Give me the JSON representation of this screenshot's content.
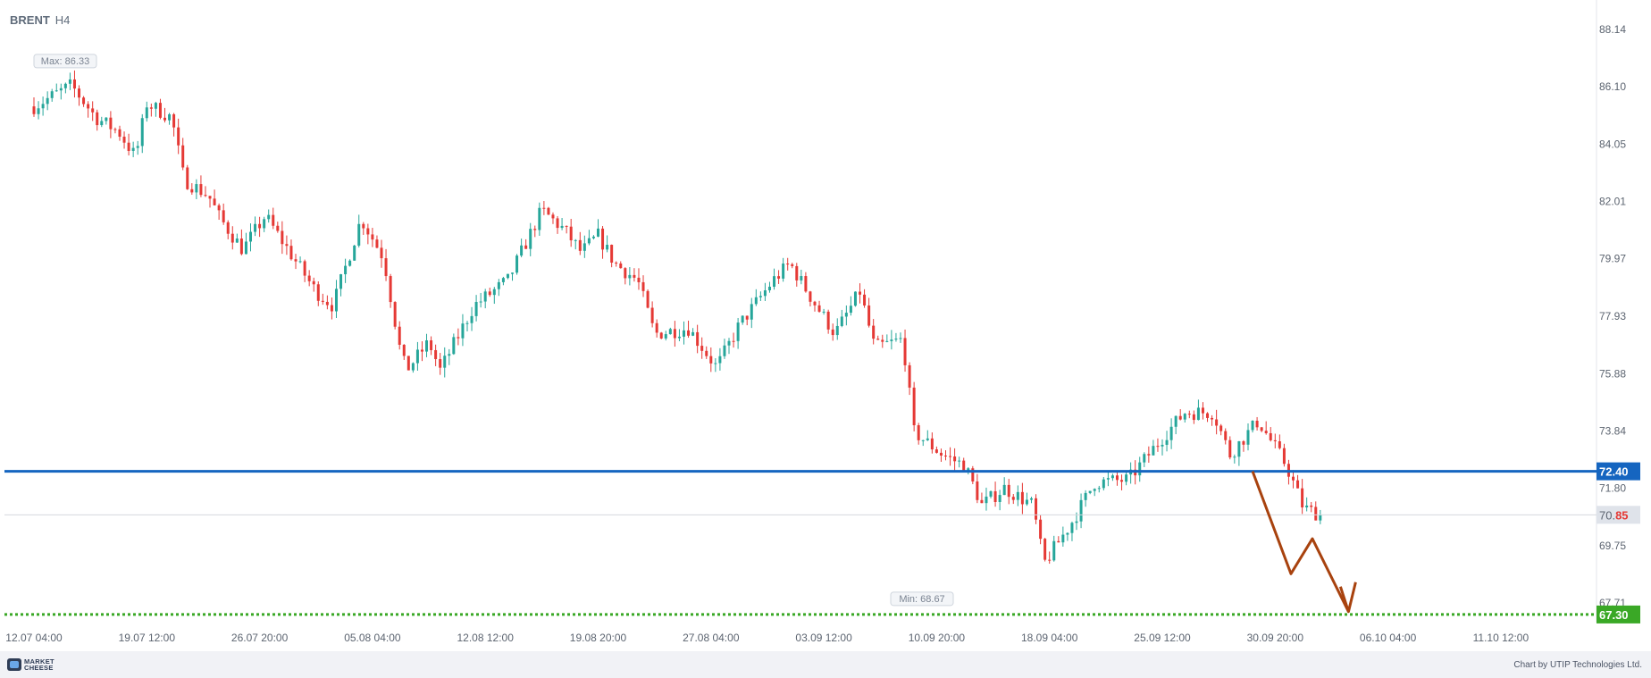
{
  "header": {
    "symbol": "BRENT",
    "timeframe": "H4"
  },
  "footer": {
    "logo_line1": "MARKET",
    "logo_line2": "CHEESE",
    "credit": "Chart by UTIP Technologies Ltd."
  },
  "colors": {
    "bullish": "#26a69a",
    "bearish": "#e53935",
    "support_line": "#1565c0",
    "target_line": "#3aa826",
    "forecast_arrow": "#a8420e",
    "axis_text": "#5c6470",
    "current_price_bg": "#dfe3ea"
  },
  "chart_data": {
    "type": "candlestick",
    "instrument": "BRENT",
    "timeframe": "H4",
    "ylim": [
      66.9,
      88.9
    ],
    "y_ticks": [
      "88.14",
      "86.10",
      "84.05",
      "82.01",
      "79.97",
      "77.93",
      "75.88",
      "73.84",
      "71.80",
      "69.75",
      "67.71"
    ],
    "x_ticks": [
      "12.07 04:00",
      "19.07 12:00",
      "26.07 20:00",
      "05.08 04:00",
      "12.08 12:00",
      "19.08 20:00",
      "27.08 04:00",
      "03.09 12:00",
      "10.09 20:00",
      "18.09 04:00",
      "25.09 12:00",
      "30.09 20:00",
      "06.10 04:00",
      "11.10 12:00"
    ],
    "max_label": "Max: 86.33",
    "min_label": "Min: 68.67",
    "max_value": 86.33,
    "min_value": 68.67,
    "current_price": {
      "value": 70.85,
      "main": "70.",
      "tail": "85"
    },
    "support_level": {
      "value": 72.4,
      "label": "72.40"
    },
    "target_level": {
      "value": 67.3,
      "label": "67.30"
    },
    "forecast_path": [
      {
        "x_tick": 10.8,
        "y": 72.4
      },
      {
        "x_tick": 11.14,
        "y": 68.75
      },
      {
        "x_tick": 11.33,
        "y": 70.0
      },
      {
        "x_tick": 11.65,
        "y": 67.4
      }
    ],
    "waypoints": [
      {
        "x_tick": 0.0,
        "y": 85.4
      },
      {
        "x_tick": 0.33,
        "y": 86.15
      },
      {
        "x_tick": 0.55,
        "y": 85.0
      },
      {
        "x_tick": 0.75,
        "y": 84.5
      },
      {
        "x_tick": 0.9,
        "y": 83.6
      },
      {
        "x_tick": 1.0,
        "y": 85.5
      },
      {
        "x_tick": 1.22,
        "y": 85.0
      },
      {
        "x_tick": 1.33,
        "y": 82.8
      },
      {
        "x_tick": 1.55,
        "y": 82.2
      },
      {
        "x_tick": 1.65,
        "y": 81.4
      },
      {
        "x_tick": 1.85,
        "y": 80.3
      },
      {
        "x_tick": 2.05,
        "y": 81.5
      },
      {
        "x_tick": 2.25,
        "y": 80.3
      },
      {
        "x_tick": 2.5,
        "y": 78.8
      },
      {
        "x_tick": 2.65,
        "y": 78.3
      },
      {
        "x_tick": 2.9,
        "y": 81.4
      },
      {
        "x_tick": 3.1,
        "y": 80.0
      },
      {
        "x_tick": 3.25,
        "y": 76.6
      },
      {
        "x_tick": 3.3,
        "y": 76.0
      },
      {
        "x_tick": 3.5,
        "y": 77.0
      },
      {
        "x_tick": 3.6,
        "y": 76.0
      },
      {
        "x_tick": 3.9,
        "y": 78.3
      },
      {
        "x_tick": 4.2,
        "y": 79.2
      },
      {
        "x_tick": 4.5,
        "y": 81.7
      },
      {
        "x_tick": 4.7,
        "y": 81.0
      },
      {
        "x_tick": 4.85,
        "y": 80.2
      },
      {
        "x_tick": 5.0,
        "y": 80.8
      },
      {
        "x_tick": 5.15,
        "y": 79.8
      },
      {
        "x_tick": 5.35,
        "y": 79.2
      },
      {
        "x_tick": 5.5,
        "y": 77.3
      },
      {
        "x_tick": 5.8,
        "y": 77.5
      },
      {
        "x_tick": 6.05,
        "y": 76.1
      },
      {
        "x_tick": 6.25,
        "y": 77.6
      },
      {
        "x_tick": 6.55,
        "y": 79.2
      },
      {
        "x_tick": 6.7,
        "y": 79.8
      },
      {
        "x_tick": 6.9,
        "y": 78.5
      },
      {
        "x_tick": 7.1,
        "y": 77.3
      },
      {
        "x_tick": 7.32,
        "y": 78.8
      },
      {
        "x_tick": 7.45,
        "y": 76.8
      },
      {
        "x_tick": 7.7,
        "y": 77.1
      },
      {
        "x_tick": 7.8,
        "y": 73.8
      },
      {
        "x_tick": 8.05,
        "y": 73.0
      },
      {
        "x_tick": 8.25,
        "y": 72.6
      },
      {
        "x_tick": 8.4,
        "y": 71.2
      },
      {
        "x_tick": 8.6,
        "y": 71.8
      },
      {
        "x_tick": 8.85,
        "y": 71.2
      },
      {
        "x_tick": 8.95,
        "y": 69.1
      },
      {
        "x_tick": 9.2,
        "y": 70.6
      },
      {
        "x_tick": 9.4,
        "y": 72.0
      },
      {
        "x_tick": 9.7,
        "y": 72.1
      },
      {
        "x_tick": 10.0,
        "y": 73.6
      },
      {
        "x_tick": 10.2,
        "y": 74.5
      },
      {
        "x_tick": 10.45,
        "y": 74.5
      },
      {
        "x_tick": 10.6,
        "y": 73.0
      },
      {
        "x_tick": 10.85,
        "y": 74.2
      },
      {
        "x_tick": 11.1,
        "y": 72.6
      },
      {
        "x_tick": 11.25,
        "y": 71.1
      },
      {
        "x_tick": 11.4,
        "y": 70.85
      }
    ]
  }
}
